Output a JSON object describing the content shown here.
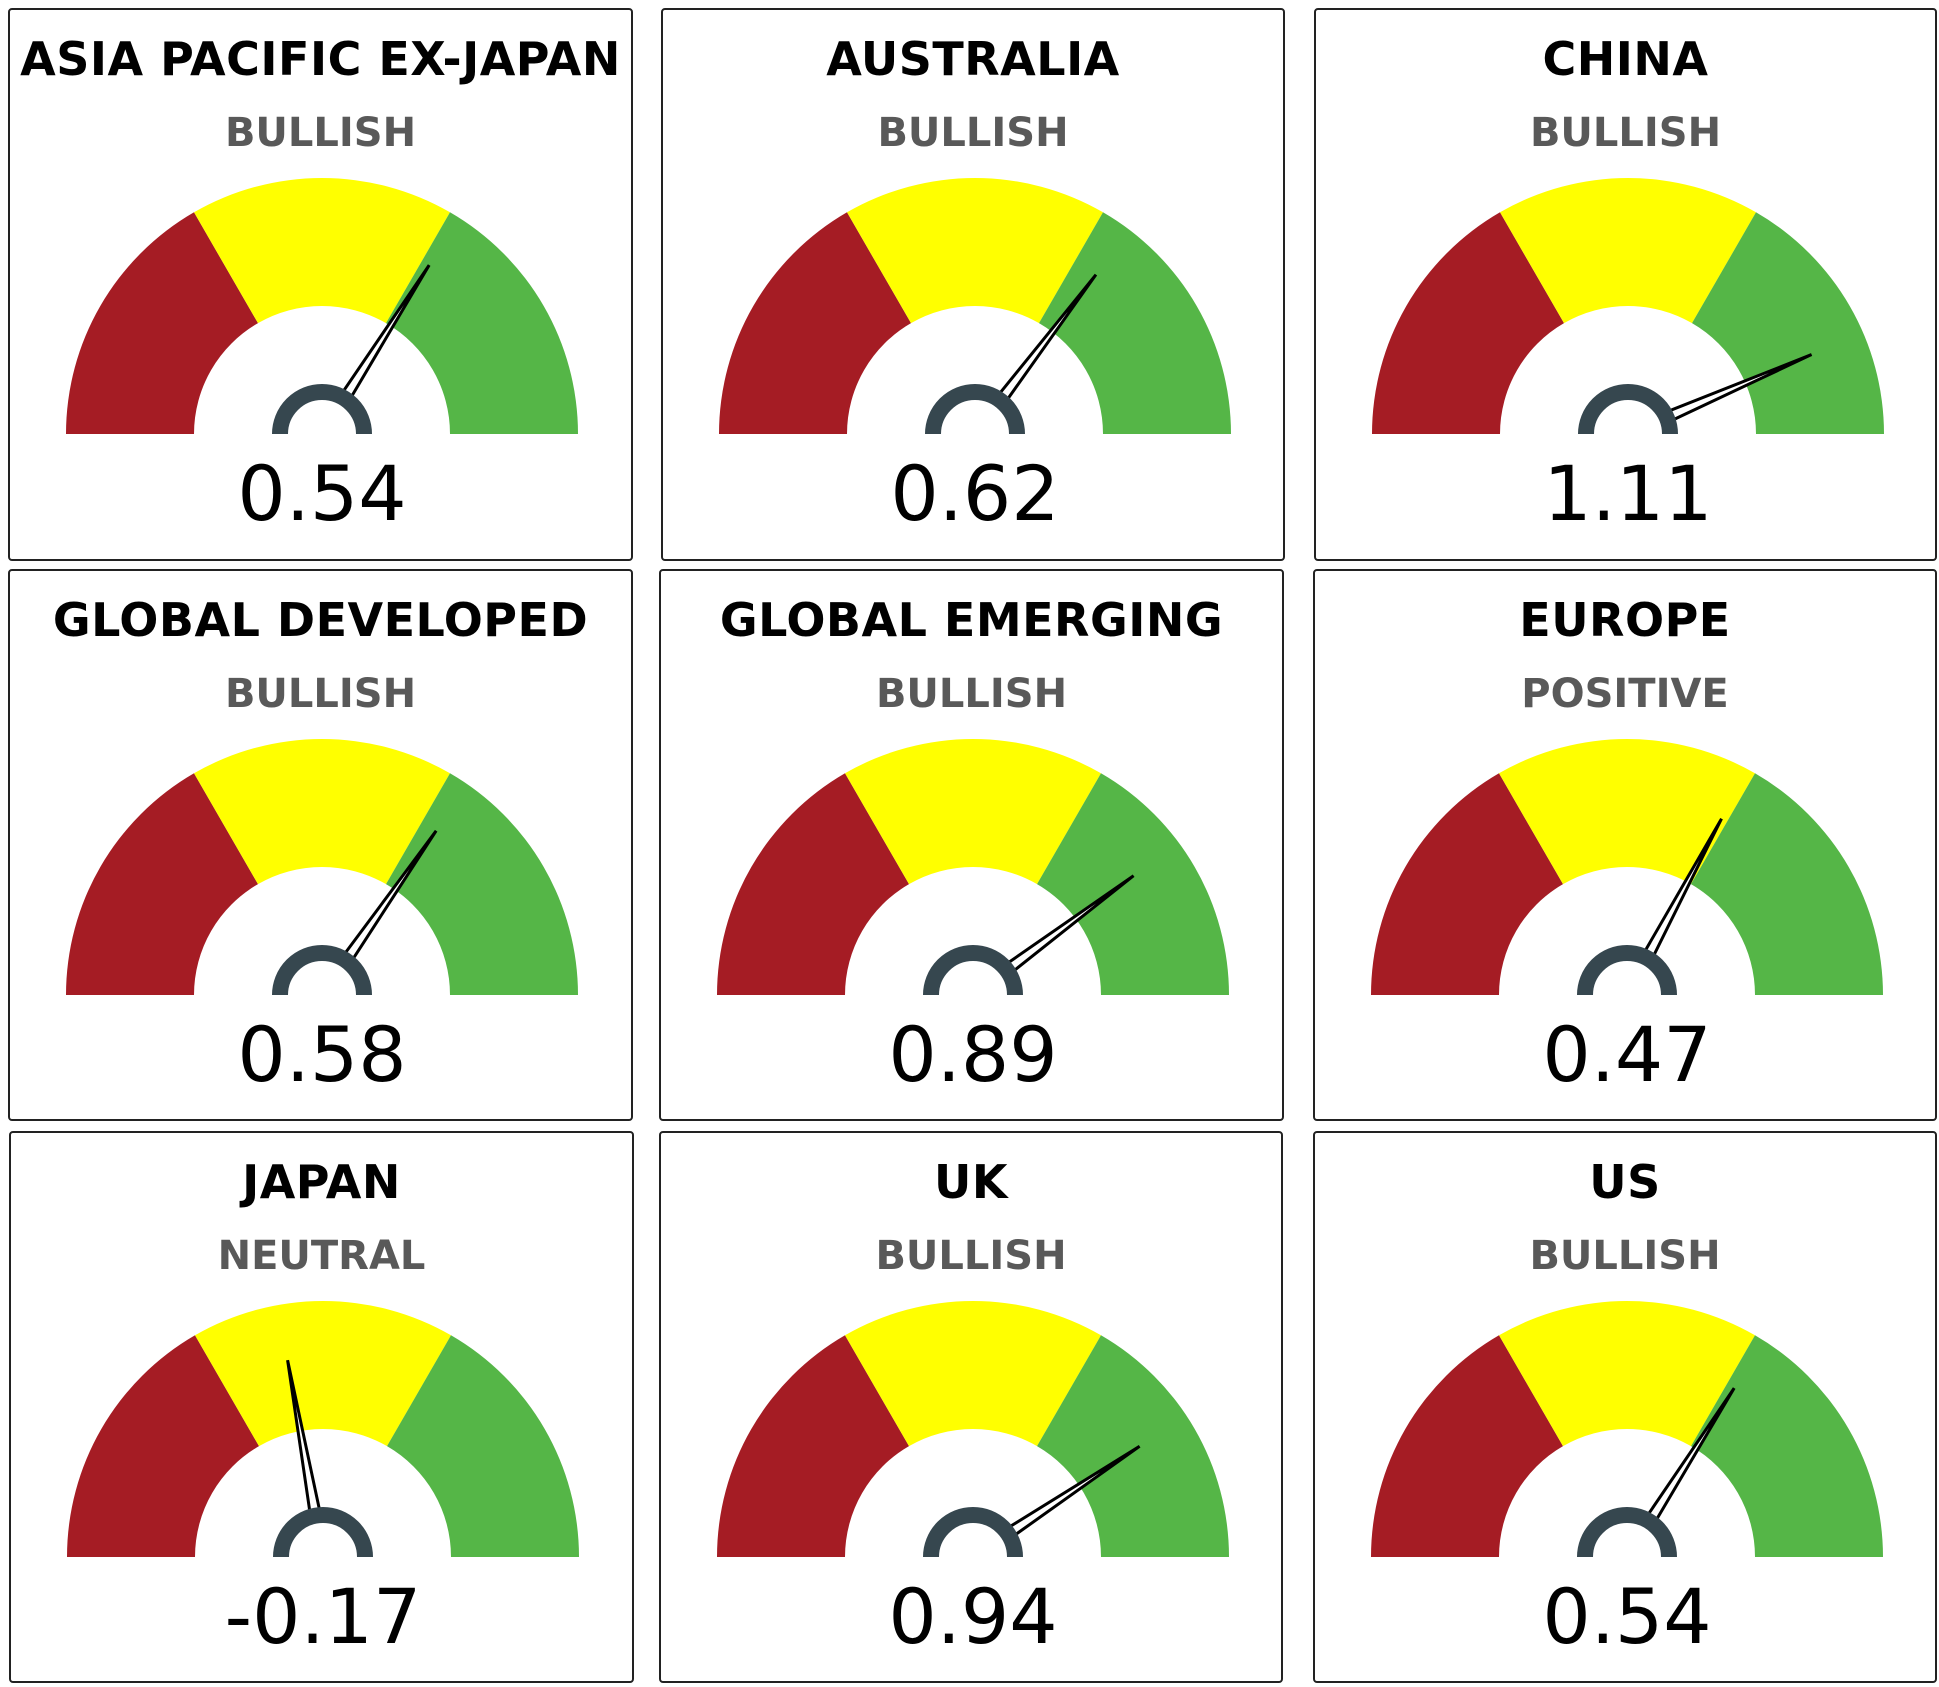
{
  "colors": {
    "bearish": "#A51C24",
    "neutral": "#FFFF00",
    "bullish": "#55B647",
    "hub": "#36474F",
    "needle": "#000000",
    "rating_text": "#595959"
  },
  "chart_data": [
    {
      "type": "gauge",
      "title": "ASIA PACIFIC EX-JAPAN",
      "rating": "BULLISH",
      "value": 0.54,
      "value_label": "0.54",
      "range": [
        -1.5,
        1.5
      ]
    },
    {
      "type": "gauge",
      "title": "AUSTRALIA",
      "rating": "BULLISH",
      "value": 0.62,
      "value_label": "0.62",
      "range": [
        -1.5,
        1.5
      ]
    },
    {
      "type": "gauge",
      "title": "CHINA",
      "rating": "BULLISH",
      "value": 1.11,
      "value_label": "1.11",
      "range": [
        -1.5,
        1.5
      ]
    },
    {
      "type": "gauge",
      "title": "GLOBAL DEVELOPED",
      "rating": "BULLISH",
      "value": 0.58,
      "value_label": "0.58",
      "range": [
        -1.5,
        1.5
      ]
    },
    {
      "type": "gauge",
      "title": "GLOBAL EMERGING",
      "rating": "BULLISH",
      "value": 0.89,
      "value_label": "0.89",
      "range": [
        -1.5,
        1.5
      ]
    },
    {
      "type": "gauge",
      "title": "EUROPE",
      "rating": "POSITIVE",
      "value": 0.47,
      "value_label": "0.47",
      "range": [
        -1.5,
        1.5
      ]
    },
    {
      "type": "gauge",
      "title": "JAPAN",
      "rating": "NEUTRAL",
      "value": -0.17,
      "value_label": "-0.17",
      "range": [
        -1.5,
        1.5
      ]
    },
    {
      "type": "gauge",
      "title": "UK",
      "rating": "BULLISH",
      "value": 0.94,
      "value_label": "0.94",
      "range": [
        -1.5,
        1.5
      ]
    },
    {
      "type": "gauge",
      "title": "US",
      "rating": "BULLISH",
      "value": 0.54,
      "value_label": "0.54",
      "range": [
        -1.5,
        1.5
      ]
    }
  ]
}
